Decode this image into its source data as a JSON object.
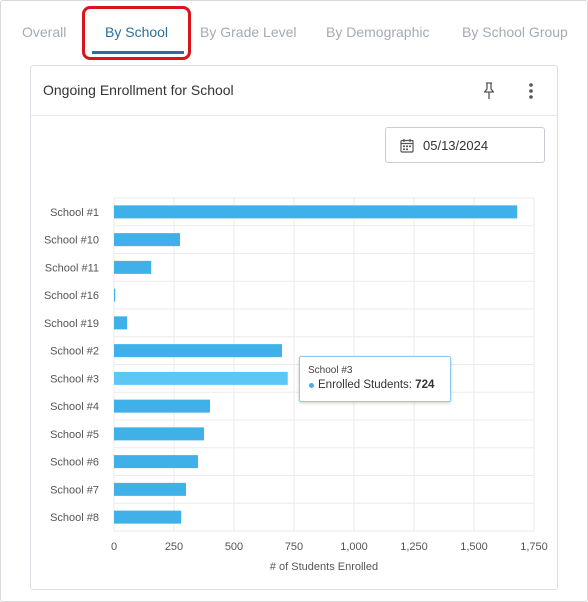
{
  "tabs": [
    {
      "label": "Overall",
      "active": false
    },
    {
      "label": "By School",
      "active": true
    },
    {
      "label": "By Grade Level",
      "active": false
    },
    {
      "label": "By Demographic",
      "active": false
    },
    {
      "label": "By School Group",
      "active": false
    }
  ],
  "card": {
    "title": "Ongoing Enrollment for School",
    "date": "05/13/2024",
    "icons": {
      "pin": "pin-icon",
      "more": "more-vertical-icon",
      "calendar": "calendar-icon"
    }
  },
  "colors": {
    "bar": "#3fb1e8",
    "bar_hover": "#5cc7f5",
    "active_tab": "#2a6f9b",
    "highlight": "#d9141b"
  },
  "tooltip": {
    "title": "School #3",
    "label": "Enrolled Students: ",
    "value": "724"
  },
  "chart_data": {
    "type": "bar",
    "orientation": "horizontal",
    "categories": [
      "School #1",
      "School #10",
      "School #11",
      "School #16",
      "School #19",
      "School #2",
      "School #3",
      "School #4",
      "School #5",
      "School #6",
      "School #7",
      "School #8"
    ],
    "values": [
      1680,
      275,
      155,
      5,
      55,
      700,
      724,
      400,
      375,
      350,
      300,
      280
    ],
    "xlabel": "# of Students Enrolled",
    "xlim": [
      0,
      1750
    ],
    "xticks": [
      "0",
      "250",
      "500",
      "750",
      "1,000",
      "1,250",
      "1,500",
      "1,750"
    ],
    "grid": true,
    "highlighted_category": "School #3"
  }
}
